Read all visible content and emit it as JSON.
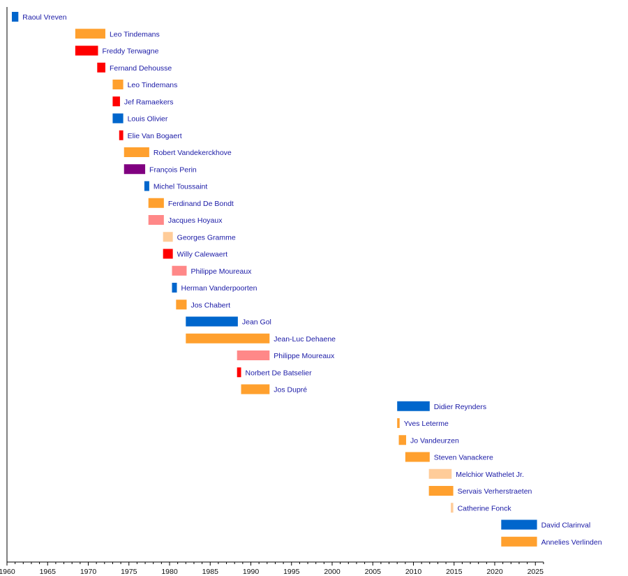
{
  "chart_data": {
    "type": "timeline",
    "title": "",
    "xlabel": "",
    "ylabel": "",
    "xlim": [
      1960,
      2026
    ],
    "x_ticks": [
      1960,
      1965,
      1970,
      1975,
      1980,
      1985,
      1990,
      1995,
      2000,
      2005,
      2010,
      2015,
      2020,
      2025
    ],
    "colors": {
      "orange": "#FFA02E",
      "red": "#FF0000",
      "blue": "#0066CC",
      "purple": "#800080",
      "pink": "#FF8888",
      "peach": "#FFCC99"
    },
    "rows": [
      {
        "name": "Raoul Vreven",
        "start": 1960.6,
        "end": 1961.4,
        "color": "blue"
      },
      {
        "name": "Leo Tindemans",
        "start": 1968.4,
        "end": 1972.1,
        "color": "orange"
      },
      {
        "name": "Freddy Terwagne",
        "start": 1968.4,
        "end": 1971.2,
        "color": "red"
      },
      {
        "name": "Fernand Dehousse",
        "start": 1971.1,
        "end": 1972.1,
        "color": "red"
      },
      {
        "name": "Leo Tindemans",
        "start": 1973.0,
        "end": 1974.3,
        "color": "orange"
      },
      {
        "name": "Jef Ramaekers",
        "start": 1973.0,
        "end": 1973.9,
        "color": "red"
      },
      {
        "name": "Louis Olivier",
        "start": 1973.0,
        "end": 1974.3,
        "color": "blue"
      },
      {
        "name": "Elie Van Bogaert",
        "start": 1973.8,
        "end": 1974.3,
        "color": "red"
      },
      {
        "name": "Robert Vandekerckhove",
        "start": 1974.4,
        "end": 1977.5,
        "color": "orange"
      },
      {
        "name": "François Perin",
        "start": 1974.4,
        "end": 1977.0,
        "color": "purple"
      },
      {
        "name": "Michel Toussaint",
        "start": 1976.9,
        "end": 1977.5,
        "color": "blue"
      },
      {
        "name": "Ferdinand De Bondt",
        "start": 1977.4,
        "end": 1979.3,
        "color": "orange"
      },
      {
        "name": "Jacques Hoyaux",
        "start": 1977.4,
        "end": 1979.3,
        "color": "pink"
      },
      {
        "name": "Georges Gramme",
        "start": 1979.2,
        "end": 1980.4,
        "color": "peach"
      },
      {
        "name": "Willy Calewaert",
        "start": 1979.2,
        "end": 1980.4,
        "color": "red"
      },
      {
        "name": "Philippe Moureaux",
        "start": 1980.3,
        "end": 1982.1,
        "color": "pink"
      },
      {
        "name": "Herman Vanderpoorten",
        "start": 1980.3,
        "end": 1980.9,
        "color": "blue"
      },
      {
        "name": "Jos Chabert",
        "start": 1980.8,
        "end": 1982.1,
        "color": "orange"
      },
      {
        "name": "Jean Gol",
        "start": 1982.0,
        "end": 1988.4,
        "color": "blue"
      },
      {
        "name": "Jean-Luc Dehaene",
        "start": 1982.0,
        "end": 1992.3,
        "color": "orange"
      },
      {
        "name": "Philippe Moureaux",
        "start": 1988.3,
        "end": 1992.3,
        "color": "pink"
      },
      {
        "name": "Norbert De Batselier",
        "start": 1988.3,
        "end": 1988.8,
        "color": "red"
      },
      {
        "name": "Jos Dupré",
        "start": 1988.8,
        "end": 1992.3,
        "color": "orange"
      },
      {
        "name": "Didier Reynders",
        "start": 2008.0,
        "end": 2012.0,
        "color": "blue"
      },
      {
        "name": "Yves Leterme",
        "start": 2008.0,
        "end": 2008.3,
        "color": "orange"
      },
      {
        "name": "Jo Vandeurzen",
        "start": 2008.2,
        "end": 2009.1,
        "color": "orange"
      },
      {
        "name": "Steven Vanackere",
        "start": 2009.0,
        "end": 2012.0,
        "color": "orange"
      },
      {
        "name": "Melchior Wathelet Jr.",
        "start": 2011.9,
        "end": 2014.7,
        "color": "peach"
      },
      {
        "name": "Servais Verherstraeten",
        "start": 2011.9,
        "end": 2014.9,
        "color": "orange"
      },
      {
        "name": "Catherine Fonck",
        "start": 2014.6,
        "end": 2014.9,
        "color": "peach"
      },
      {
        "name": "David Clarinval",
        "start": 2020.8,
        "end": 2025.2,
        "color": "blue"
      },
      {
        "name": "Annelies Verlinden",
        "start": 2020.8,
        "end": 2025.2,
        "color": "orange"
      }
    ]
  }
}
